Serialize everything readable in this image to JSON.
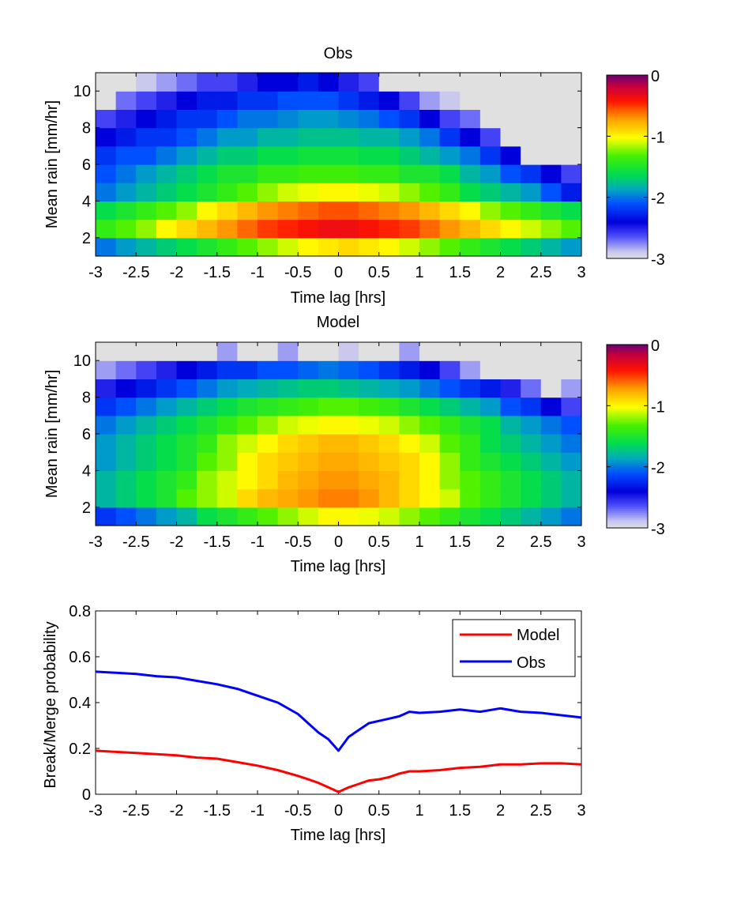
{
  "chart_data": [
    {
      "type": "heatmap",
      "title": "Obs",
      "xlabel": "Time lag [hrs]",
      "ylabel": "Mean rain [mm/hr]",
      "xlim": [
        -3,
        3
      ],
      "ylim": [
        1,
        11
      ],
      "x_ticks": [
        -3,
        -2.5,
        -2,
        -1.5,
        -1,
        -0.5,
        0,
        0.5,
        1,
        1.5,
        2,
        2.5,
        3
      ],
      "y_ticks": [
        2,
        4,
        6,
        8,
        10
      ],
      "rows": [
        {
          "y": 1.5,
          "values": [
            -2.0,
            -1.9,
            -1.8,
            -1.7,
            -1.6,
            -1.5,
            -1.4,
            -1.3,
            -1.2,
            -1.1,
            -1.0,
            -0.95,
            -0.9,
            -0.95,
            -1.0,
            -1.1,
            -1.2,
            -1.3,
            -1.4,
            -1.5,
            -1.6,
            -1.7,
            -1.8,
            -1.9
          ]
        },
        {
          "y": 2.5,
          "values": [
            -1.4,
            -1.3,
            -1.2,
            -1.0,
            -0.9,
            -0.8,
            -0.7,
            -0.6,
            -0.5,
            -0.45,
            -0.4,
            -0.35,
            -0.35,
            -0.4,
            -0.45,
            -0.5,
            -0.6,
            -0.7,
            -0.8,
            -0.9,
            -1.0,
            -1.1,
            -1.2,
            -1.3
          ]
        },
        {
          "y": 3.5,
          "values": [
            -1.6,
            -1.5,
            -1.4,
            -1.3,
            -1.2,
            -1.0,
            -0.9,
            -0.8,
            -0.7,
            -0.65,
            -0.6,
            -0.55,
            -0.55,
            -0.6,
            -0.65,
            -0.7,
            -0.8,
            -0.9,
            -1.0,
            -1.2,
            -1.3,
            -1.4,
            -1.5,
            -1.6
          ]
        },
        {
          "y": 4.5,
          "values": [
            -2.0,
            -1.9,
            -1.8,
            -1.7,
            -1.6,
            -1.5,
            -1.4,
            -1.3,
            -1.2,
            -1.1,
            -1.05,
            -1.0,
            -1.0,
            -1.05,
            -1.1,
            -1.2,
            -1.3,
            -1.4,
            -1.6,
            -1.7,
            -1.8,
            -1.9,
            -2.1,
            -2.3
          ]
        },
        {
          "y": 5.5,
          "values": [
            -2.1,
            -2.0,
            -1.9,
            -1.8,
            -1.7,
            -1.6,
            -1.5,
            -1.5,
            -1.4,
            -1.4,
            -1.35,
            -1.35,
            -1.35,
            -1.4,
            -1.4,
            -1.5,
            -1.5,
            -1.6,
            -1.8,
            -1.9,
            -2.1,
            -2.2,
            -2.4,
            -2.6
          ]
        },
        {
          "y": 6.5,
          "values": [
            -2.2,
            -2.1,
            -2.1,
            -2.0,
            -1.9,
            -1.8,
            -1.7,
            -1.7,
            -1.6,
            -1.6,
            -1.55,
            -1.55,
            -1.55,
            -1.6,
            -1.6,
            -1.7,
            -1.8,
            -1.9,
            -2.0,
            -2.2,
            -2.4,
            -3,
            -3,
            -3
          ]
        },
        {
          "y": 7.5,
          "values": [
            -2.4,
            -2.3,
            -2.2,
            -2.2,
            -2.1,
            -2.0,
            -1.9,
            -1.9,
            -1.8,
            -1.8,
            -1.75,
            -1.75,
            -1.75,
            -1.8,
            -1.8,
            -1.9,
            -2.0,
            -2.2,
            -2.4,
            -2.6,
            -3,
            -3,
            -3,
            -3
          ]
        },
        {
          "y": 8.5,
          "values": [
            -2.6,
            -2.5,
            -2.4,
            -2.3,
            -2.2,
            -2.2,
            -2.1,
            -2.0,
            -2.0,
            -1.95,
            -1.9,
            -1.9,
            -1.95,
            -2.0,
            -2.1,
            -2.2,
            -2.4,
            -2.6,
            -2.7,
            -3,
            -3,
            -3,
            -3,
            -3
          ]
        },
        {
          "y": 9.5,
          "values": [
            -3,
            -2.7,
            -2.6,
            -2.5,
            -2.4,
            -2.3,
            -2.3,
            -2.2,
            -2.2,
            -2.1,
            -2.1,
            -2.1,
            -2.2,
            -2.3,
            -2.4,
            -2.6,
            -2.8,
            -2.9,
            -3,
            -3,
            -3,
            -3,
            -3,
            -3
          ]
        },
        {
          "y": 10.5,
          "values": [
            -3,
            -3,
            -2.9,
            -2.8,
            -2.7,
            -2.6,
            -2.6,
            -2.5,
            -2.4,
            -2.4,
            -2.3,
            -2.4,
            -2.5,
            -2.6,
            -3,
            -3,
            -3,
            -3,
            -3,
            -3,
            -3,
            -3,
            -3,
            -3
          ]
        }
      ],
      "colorbar": {
        "min": -3,
        "max": 0,
        "ticks": [
          0,
          -1,
          -2,
          -3
        ]
      }
    },
    {
      "type": "heatmap",
      "title": "Model",
      "xlabel": "Time lag [hrs]",
      "ylabel": "Mean rain [mm/hr]",
      "xlim": [
        -3,
        3
      ],
      "ylim": [
        1,
        11
      ],
      "x_ticks": [
        -3,
        -2.5,
        -2,
        -1.5,
        -1,
        -0.5,
        0,
        0.5,
        1,
        1.5,
        2,
        2.5,
        3
      ],
      "y_ticks": [
        2,
        4,
        6,
        8,
        10
      ],
      "rows": [
        {
          "y": 1.5,
          "values": [
            -2.2,
            -2.1,
            -2.0,
            -1.9,
            -1.8,
            -1.6,
            -1.5,
            -1.4,
            -1.3,
            -1.2,
            -1.1,
            -1.0,
            -1.0,
            -1.05,
            -1.1,
            -1.2,
            -1.3,
            -1.4,
            -1.5,
            -1.6,
            -1.7,
            -1.8,
            -1.9,
            -2.0
          ]
        },
        {
          "y": 2.5,
          "values": [
            -1.8,
            -1.7,
            -1.6,
            -1.5,
            -1.3,
            -1.2,
            -1.1,
            -0.9,
            -0.8,
            -0.75,
            -0.7,
            -0.65,
            -0.65,
            -0.7,
            -0.8,
            -0.9,
            -1.0,
            -1.1,
            -1.3,
            -1.4,
            -1.5,
            -1.6,
            -1.7,
            -1.8
          ]
        },
        {
          "y": 3.5,
          "values": [
            -1.8,
            -1.7,
            -1.6,
            -1.5,
            -1.4,
            -1.2,
            -1.1,
            -1.0,
            -0.9,
            -0.8,
            -0.75,
            -0.7,
            -0.7,
            -0.75,
            -0.8,
            -0.9,
            -1.0,
            -1.2,
            -1.3,
            -1.4,
            -1.5,
            -1.6,
            -1.7,
            -1.8
          ]
        },
        {
          "y": 4.5,
          "values": [
            -1.9,
            -1.8,
            -1.7,
            -1.6,
            -1.5,
            -1.3,
            -1.2,
            -1.0,
            -0.9,
            -0.85,
            -0.8,
            -0.75,
            -0.75,
            -0.8,
            -0.85,
            -0.9,
            -1.0,
            -1.2,
            -1.4,
            -1.5,
            -1.6,
            -1.7,
            -1.8,
            -1.9
          ]
        },
        {
          "y": 5.5,
          "values": [
            -1.9,
            -1.8,
            -1.7,
            -1.6,
            -1.5,
            -1.4,
            -1.2,
            -1.1,
            -1.0,
            -0.9,
            -0.85,
            -0.8,
            -0.8,
            -0.85,
            -0.9,
            -1.0,
            -1.1,
            -1.3,
            -1.4,
            -1.6,
            -1.7,
            -1.8,
            -1.9,
            -2.0
          ]
        },
        {
          "y": 6.5,
          "values": [
            -2.0,
            -1.9,
            -1.8,
            -1.7,
            -1.6,
            -1.5,
            -1.4,
            -1.3,
            -1.2,
            -1.1,
            -1.05,
            -1.0,
            -1.0,
            -1.05,
            -1.1,
            -1.2,
            -1.3,
            -1.4,
            -1.5,
            -1.6,
            -1.8,
            -1.9,
            -2.0,
            -2.1
          ]
        },
        {
          "y": 7.5,
          "values": [
            -2.2,
            -2.1,
            -2.0,
            -1.9,
            -1.8,
            -1.7,
            -1.6,
            -1.5,
            -1.45,
            -1.4,
            -1.35,
            -1.3,
            -1.3,
            -1.35,
            -1.4,
            -1.5,
            -1.6,
            -1.7,
            -1.8,
            -1.9,
            -2.1,
            -2.2,
            -2.4,
            -2.6
          ]
        },
        {
          "y": 8.5,
          "values": [
            -2.5,
            -2.4,
            -2.3,
            -2.2,
            -2.1,
            -2.0,
            -1.9,
            -1.85,
            -1.8,
            -1.75,
            -1.7,
            -1.7,
            -1.75,
            -1.8,
            -1.85,
            -1.9,
            -2.0,
            -2.1,
            -2.2,
            -2.3,
            -2.5,
            -2.7,
            -3,
            -2.8
          ]
        },
        {
          "y": 9.5,
          "values": [
            -2.8,
            -2.7,
            -2.6,
            -2.5,
            -2.4,
            -2.3,
            -2.2,
            -2.2,
            -2.1,
            -2.1,
            -2.05,
            -2.0,
            -2.05,
            -2.1,
            -2.2,
            -2.3,
            -2.4,
            -2.6,
            -2.8,
            -3,
            -3,
            -3,
            -3,
            -3
          ]
        },
        {
          "y": 10.5,
          "values": [
            -3,
            -3,
            -3,
            -3,
            -3,
            -3,
            -2.8,
            -3,
            -3,
            -2.8,
            -3,
            -3,
            -2.9,
            -3,
            -3,
            -2.8,
            -3,
            -3,
            -3,
            -3,
            -3,
            -3,
            -3,
            -3
          ]
        }
      ],
      "colorbar": {
        "min": -3,
        "max": 0,
        "ticks": [
          0,
          -1,
          -2,
          -3
        ]
      }
    },
    {
      "type": "line",
      "title": "",
      "xlabel": "Time lag [hrs]",
      "ylabel": "Break/Merge probability",
      "xlim": [
        -3,
        3
      ],
      "ylim": [
        0,
        0.8
      ],
      "x_ticks": [
        -3,
        -2.5,
        -2,
        -1.5,
        -1,
        -0.5,
        0,
        0.5,
        1,
        1.5,
        2,
        2.5,
        3
      ],
      "y_ticks": [
        0,
        0.2,
        0.4,
        0.6,
        0.8
      ],
      "legend_position": "top-right",
      "x": [
        -3,
        -2.75,
        -2.5,
        -2.25,
        -2,
        -1.75,
        -1.5,
        -1.25,
        -1,
        -0.75,
        -0.5,
        -0.375,
        -0.25,
        -0.125,
        0,
        0.125,
        0.25,
        0.375,
        0.5,
        0.625,
        0.75,
        0.875,
        1,
        1.25,
        1.5,
        1.75,
        2,
        2.25,
        2.5,
        2.75,
        3
      ],
      "series": [
        {
          "name": "Model",
          "color": "#ff0000",
          "values": [
            0.19,
            0.185,
            0.18,
            0.175,
            0.17,
            0.16,
            0.155,
            0.14,
            0.125,
            0.105,
            0.08,
            0.065,
            0.05,
            0.03,
            0.01,
            0.03,
            0.045,
            0.06,
            0.065,
            0.075,
            0.09,
            0.1,
            0.1,
            0.105,
            0.115,
            0.12,
            0.13,
            0.13,
            0.135,
            0.135,
            0.13
          ]
        },
        {
          "name": "Obs",
          "color": "#0000ff",
          "values": [
            0.535,
            0.53,
            0.525,
            0.515,
            0.51,
            0.495,
            0.48,
            0.46,
            0.43,
            0.4,
            0.35,
            0.31,
            0.27,
            0.24,
            0.19,
            0.25,
            0.28,
            0.31,
            0.32,
            0.33,
            0.34,
            0.36,
            0.355,
            0.36,
            0.37,
            0.36,
            0.375,
            0.36,
            0.355,
            0.345,
            0.335
          ]
        }
      ]
    }
  ]
}
